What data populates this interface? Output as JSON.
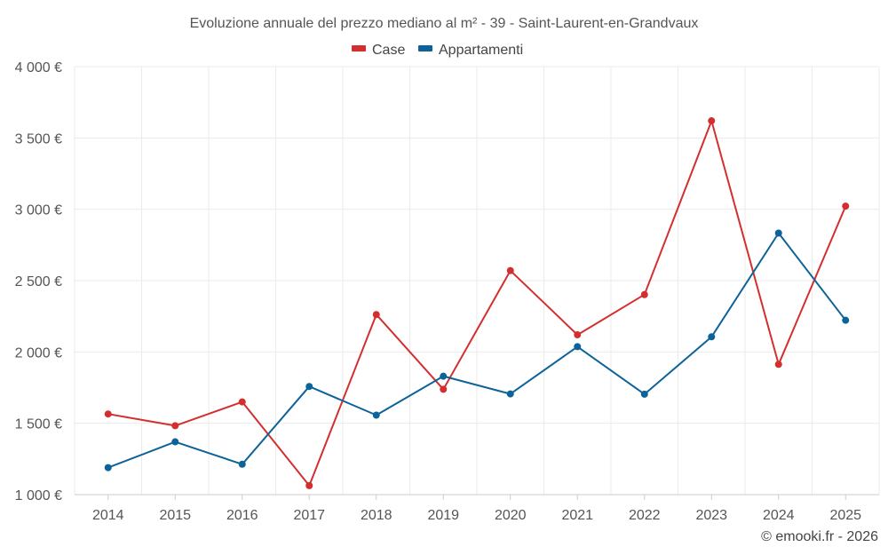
{
  "chart_data": {
    "type": "line",
    "title": "Evoluzione annuale del prezzo mediano al m² - 39 - Saint-Laurent-en-Grandvaux",
    "categories": [
      "2014",
      "2015",
      "2016",
      "2017",
      "2018",
      "2019",
      "2020",
      "2021",
      "2022",
      "2023",
      "2024",
      "2025"
    ],
    "series": [
      {
        "name": "Case",
        "color": "#d32f2f",
        "values": [
          1565,
          1483,
          1650,
          1063,
          2262,
          1738,
          2570,
          2120,
          2402,
          3620,
          1913,
          3022
        ]
      },
      {
        "name": "Appartamenti",
        "color": "#0d6399",
        "values": [
          1189,
          1370,
          1213,
          1758,
          1557,
          1830,
          1706,
          2037,
          1704,
          2106,
          2833,
          2222
        ]
      }
    ],
    "ylim": [
      1000,
      4000
    ],
    "yticks": [
      {
        "value": 1000,
        "label": "1 000 €"
      },
      {
        "value": 1500,
        "label": "1 500 €"
      },
      {
        "value": 2000,
        "label": "2 000 €"
      },
      {
        "value": 2500,
        "label": "2 500 €"
      },
      {
        "value": 3000,
        "label": "3 000 €"
      },
      {
        "value": 3500,
        "label": "3 500 €"
      },
      {
        "value": 4000,
        "label": "4 000 €"
      }
    ],
    "xlabel": "",
    "ylabel": "",
    "grid": true,
    "legend": "top-center"
  },
  "credit": "© emooki.fr - 2026"
}
